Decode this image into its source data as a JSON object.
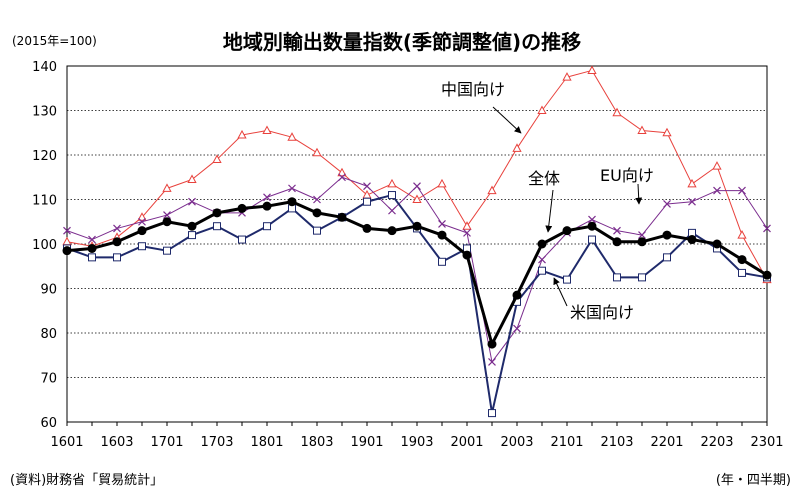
{
  "chart_data": {
    "type": "line",
    "title": "地域別輸出数量指数(季節調整値)の推移",
    "unit_note": "(2015年=100)",
    "source": "(資料)財務省「貿易統計」",
    "xunit": "(年・四半期)",
    "ylim": [
      60,
      140
    ],
    "yticks": [
      60,
      70,
      80,
      90,
      100,
      110,
      120,
      130,
      140
    ],
    "grid": "horizontal dotted",
    "x": [
      "1601",
      "1602",
      "1603",
      "1604",
      "1701",
      "1702",
      "1703",
      "1704",
      "1801",
      "1802",
      "1803",
      "1804",
      "1901",
      "1902",
      "1903",
      "1904",
      "2001",
      "2002",
      "2003",
      "2004",
      "2101",
      "2102",
      "2103",
      "2104",
      "2201",
      "2202",
      "2203",
      "2204",
      "2301"
    ],
    "xtick_labels": [
      "1601",
      "1603",
      "1701",
      "1703",
      "1801",
      "1803",
      "1901",
      "1903",
      "2001",
      "2003",
      "2101",
      "2103",
      "2201",
      "2203",
      "2301"
    ],
    "series": [
      {
        "name": "中国向け",
        "color": "#e8413c",
        "marker": "triangle-open",
        "values": [
          100.5,
          99.5,
          101.5,
          106,
          112.5,
          114.5,
          119,
          124.5,
          125.5,
          124,
          120.5,
          116,
          111,
          113.5,
          110,
          113.5,
          104,
          112,
          121.5,
          130,
          137.5,
          139,
          129.5,
          125.5,
          125,
          113.5,
          117.5,
          102,
          92
        ]
      },
      {
        "name": "EU向け",
        "color": "#7b2d8e",
        "marker": "x",
        "values": [
          103,
          101,
          103.5,
          105,
          106.5,
          109.5,
          107,
          107,
          110.5,
          112.5,
          110,
          115,
          113,
          107.5,
          113,
          104.5,
          102.5,
          73.5,
          81,
          96.5,
          102.5,
          105.5,
          103,
          102,
          109,
          109.5,
          112,
          112,
          103.5
        ]
      },
      {
        "name": "米国向け",
        "color": "#1f2a6b",
        "marker": "square-open",
        "values": [
          99,
          97,
          97,
          99.5,
          98.5,
          102,
          104,
          101,
          104,
          108,
          103,
          106,
          109.5,
          111,
          103.5,
          96,
          99,
          62,
          87,
          94,
          92,
          101,
          92.5,
          92.5,
          97,
          102.5,
          99,
          93.5,
          92.5
        ]
      },
      {
        "name": "全体",
        "color": "#000000",
        "marker": "circle-filled",
        "values": [
          98.5,
          99,
          100.5,
          103,
          105,
          104,
          107,
          108,
          108.5,
          109.5,
          107,
          106,
          103.5,
          103,
          104,
          102,
          97.5,
          77.5,
          88.5,
          100,
          103,
          104,
          100.5,
          100.5,
          102,
          101,
          100,
          96.5,
          93
        ]
      }
    ],
    "annotations": [
      {
        "text": "中国向け",
        "target_series": "中国向け",
        "target_x": "2002"
      },
      {
        "text": "EU向け",
        "target_series": "EU向け",
        "target_x": "2201"
      },
      {
        "text": "全体",
        "target_series": "全体",
        "target_x": "2004"
      },
      {
        "text": "米国向け",
        "target_series": "米国向け",
        "target_x": "2004"
      }
    ]
  }
}
